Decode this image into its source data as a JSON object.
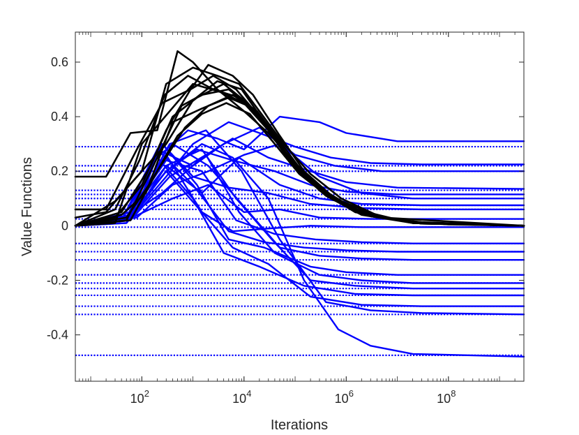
{
  "chart_data": {
    "type": "line",
    "xlabel": "Iterations",
    "ylabel": "Value Functions",
    "xscale": "log",
    "xlim": [
      5,
      3000000000
    ],
    "ylim": [
      -0.57,
      0.71
    ],
    "grid": false,
    "legend": "none",
    "colors": {
      "value_traces": "#0000ff",
      "convergent_traces": "#000000",
      "reference_levels": "#0000ff",
      "axes": "#262626"
    },
    "x_ticks": [
      {
        "value": 100,
        "base": "10",
        "exp": "2"
      },
      {
        "value": 10000,
        "base": "10",
        "exp": "4"
      },
      {
        "value": 1000000,
        "base": "10",
        "exp": "6"
      },
      {
        "value": 100000000,
        "base": "10",
        "exp": "8"
      }
    ],
    "y_ticks": [
      {
        "value": 0.6,
        "label": "0.6"
      },
      {
        "value": 0.4,
        "label": "0.4"
      },
      {
        "value": 0.2,
        "label": "0.2"
      },
      {
        "value": 0,
        "label": "0"
      },
      {
        "value": -0.2,
        "label": "-0.2"
      },
      {
        "value": -0.4,
        "label": "-0.4"
      }
    ],
    "reference_levels": [
      0.29,
      0.22,
      0.2,
      0.13,
      0.115,
      0.1,
      0.075,
      0.06,
      0.025,
      -0.005,
      -0.065,
      -0.095,
      -0.125,
      -0.18,
      -0.21,
      -0.23,
      -0.255,
      -0.295,
      -0.325,
      -0.475
    ],
    "blue_series": [
      {
        "x": [
          5,
          50,
          200,
          800,
          3000,
          10000,
          50000,
          300000,
          1000000,
          10000000,
          3000000000
        ],
        "y": [
          0,
          0.02,
          0.25,
          0.35,
          0.32,
          0.28,
          0.4,
          0.38,
          0.34,
          0.31,
          0.31
        ]
      },
      {
        "x": [
          5,
          50,
          300,
          1000,
          5000,
          20000,
          100000,
          500000,
          3000000,
          30000000,
          3000000000
        ],
        "y": [
          0,
          0.01,
          0.18,
          0.3,
          0.38,
          0.34,
          0.29,
          0.25,
          0.23,
          0.225,
          0.225
        ]
      },
      {
        "x": [
          5,
          60,
          200,
          1000,
          4000,
          20000,
          100000,
          600000,
          5000000,
          50000000,
          3000000000
        ],
        "y": [
          0,
          0.03,
          0.28,
          0.22,
          0.3,
          0.36,
          0.26,
          0.22,
          0.2,
          0.2,
          0.2
        ]
      },
      {
        "x": [
          5,
          40,
          250,
          1500,
          6000,
          30000,
          200000,
          1000000,
          10000000,
          3000000000
        ],
        "y": [
          0,
          0.02,
          0.12,
          0.25,
          0.32,
          0.25,
          0.2,
          0.16,
          0.14,
          0.135
        ]
      },
      {
        "x": [
          5,
          50,
          300,
          1200,
          6000,
          40000,
          200000,
          1000000,
          10000000,
          3000000000
        ],
        "y": [
          0,
          0.01,
          0.2,
          0.28,
          0.24,
          0.2,
          0.15,
          0.125,
          0.115,
          0.115
        ]
      },
      {
        "x": [
          5,
          80,
          400,
          2000,
          10000,
          50000,
          300000,
          2000000,
          20000000,
          3000000000
        ],
        "y": [
          0,
          0.03,
          0.15,
          0.2,
          0.26,
          0.3,
          0.18,
          0.12,
          0.1,
          0.1
        ]
      },
      {
        "x": [
          5,
          60,
          300,
          1500,
          8000,
          50000,
          300000,
          2000000,
          30000000,
          3000000000
        ],
        "y": [
          0,
          0.05,
          0.22,
          0.12,
          0.25,
          0.15,
          0.1,
          0.08,
          0.075,
          0.075
        ]
      },
      {
        "x": [
          5,
          70,
          250,
          1000,
          5000,
          30000,
          200000,
          2000000,
          30000000,
          3000000000
        ],
        "y": [
          0,
          0.04,
          0.3,
          0.18,
          0.14,
          0.12,
          0.08,
          0.065,
          0.06,
          0.06
        ]
      },
      {
        "x": [
          5,
          50,
          400,
          2000,
          10000,
          50000,
          300000,
          3000000,
          3000000000
        ],
        "y": [
          0,
          0.02,
          0.1,
          0.15,
          0.05,
          0.06,
          0.03,
          0.025,
          0.025
        ]
      },
      {
        "x": [
          5,
          60,
          300,
          1500,
          6000,
          30000,
          200000,
          2000000,
          3000000000
        ],
        "y": [
          0,
          0.04,
          0.2,
          0.05,
          -0.02,
          -0.01,
          0.0,
          -0.005,
          -0.005
        ]
      },
      {
        "x": [
          5,
          50,
          300,
          1500,
          7000,
          40000,
          250000,
          2000000,
          20000000,
          3000000000
        ],
        "y": [
          0,
          0.03,
          0.24,
          0.2,
          0.02,
          -0.03,
          -0.05,
          -0.06,
          -0.065,
          -0.065
        ]
      },
      {
        "x": [
          5,
          40,
          200,
          1000,
          5000,
          25000,
          150000,
          1000000,
          10000000,
          3000000000
        ],
        "y": [
          0,
          0.02,
          0.28,
          0.15,
          -0.02,
          -0.06,
          -0.08,
          -0.09,
          -0.095,
          -0.095
        ]
      },
      {
        "x": [
          5,
          60,
          400,
          2000,
          9000,
          50000,
          300000,
          2000000,
          20000000,
          3000000000
        ],
        "y": [
          0,
          0.05,
          0.3,
          0.22,
          0.08,
          -0.08,
          -0.11,
          -0.12,
          -0.125,
          -0.125
        ]
      },
      {
        "x": [
          5,
          50,
          250,
          1200,
          5000,
          25000,
          200000,
          1000000,
          10000000,
          3000000000
        ],
        "y": [
          0,
          0.03,
          0.3,
          0.15,
          -0.05,
          -0.08,
          -0.15,
          -0.17,
          -0.18,
          -0.18
        ]
      },
      {
        "x": [
          5,
          60,
          350,
          1800,
          8000,
          40000,
          300000,
          2000000,
          20000000,
          3000000000
        ],
        "y": [
          0,
          0.02,
          0.18,
          0.26,
          0.05,
          -0.1,
          -0.18,
          -0.2,
          -0.21,
          -0.21
        ]
      },
      {
        "x": [
          5,
          70,
          300,
          1500,
          7000,
          35000,
          200000,
          1500000,
          20000000,
          3000000000
        ],
        "y": [
          0,
          0.04,
          0.22,
          0.28,
          0.1,
          -0.05,
          -0.2,
          -0.22,
          -0.23,
          -0.23
        ]
      },
      {
        "x": [
          5,
          40,
          200,
          1000,
          4000,
          20000,
          150000,
          1500000,
          20000000,
          3000000000
        ],
        "y": [
          0,
          0.02,
          0.25,
          0.1,
          -0.1,
          -0.15,
          -0.22,
          -0.25,
          -0.255,
          -0.255
        ]
      },
      {
        "x": [
          5,
          50,
          300,
          1500,
          6000,
          30000,
          200000,
          2000000,
          30000000,
          3000000000
        ],
        "y": [
          0,
          0.03,
          0.26,
          0.05,
          -0.08,
          -0.14,
          -0.26,
          -0.29,
          -0.295,
          -0.295
        ]
      },
      {
        "x": [
          5,
          60,
          350,
          1800,
          9000,
          50000,
          400000,
          3000000,
          30000000,
          3000000000
        ],
        "y": [
          0,
          0.04,
          0.3,
          0.35,
          0.2,
          -0.05,
          -0.28,
          -0.31,
          -0.32,
          -0.325
        ]
      },
      {
        "x": [
          5,
          50,
          300,
          1500,
          6000,
          30000,
          150000,
          700000,
          3000000,
          20000000,
          3000000000
        ],
        "y": [
          0,
          0.02,
          0.2,
          0.3,
          0.25,
          0.1,
          -0.2,
          -0.38,
          -0.44,
          -0.47,
          -0.48
        ]
      }
    ],
    "black_series": [
      {
        "x": [
          5,
          20,
          60,
          200,
          500,
          1000,
          3000,
          10000,
          30000,
          100000,
          300000,
          1000000,
          10000000,
          100000000,
          3000000000
        ],
        "y": [
          0.18,
          0.18,
          0.34,
          0.35,
          0.64,
          0.6,
          0.5,
          0.42,
          0.34,
          0.23,
          0.13,
          0.07,
          0.02,
          0.005,
          0.0
        ]
      },
      {
        "x": [
          5,
          30,
          100,
          300,
          1000,
          3000,
          8000,
          20000,
          60000,
          200000,
          800000,
          5000000,
          50000000,
          3000000000
        ],
        "y": [
          0,
          0.09,
          0.2,
          0.52,
          0.58,
          0.55,
          0.52,
          0.42,
          0.3,
          0.19,
          0.1,
          0.03,
          0.008,
          0.0
        ]
      },
      {
        "x": [
          5,
          20,
          80,
          250,
          900,
          2000,
          6000,
          15000,
          50000,
          150000,
          600000,
          5000000,
          3000000000
        ],
        "y": [
          0.06,
          0.06,
          0.28,
          0.45,
          0.5,
          0.59,
          0.55,
          0.48,
          0.33,
          0.2,
          0.1,
          0.03,
          0.0
        ]
      },
      {
        "x": [
          5,
          40,
          150,
          400,
          1200,
          4000,
          10000,
          30000,
          100000,
          400000,
          2000000,
          20000000,
          3000000000
        ],
        "y": [
          0,
          0.05,
          0.22,
          0.4,
          0.47,
          0.52,
          0.46,
          0.36,
          0.22,
          0.12,
          0.05,
          0.01,
          0.0
        ]
      },
      {
        "x": [
          5,
          30,
          100,
          300,
          900,
          2500,
          7000,
          20000,
          70000,
          300000,
          1500000,
          15000000,
          3000000000
        ],
        "y": [
          0,
          0.03,
          0.15,
          0.35,
          0.5,
          0.55,
          0.5,
          0.4,
          0.26,
          0.14,
          0.06,
          0.015,
          0.0
        ]
      },
      {
        "x": [
          5,
          50,
          200,
          600,
          1500,
          5000,
          15000,
          40000,
          120000,
          500000,
          3000000,
          30000000,
          3000000000
        ],
        "y": [
          0,
          0.02,
          0.25,
          0.44,
          0.48,
          0.5,
          0.43,
          0.32,
          0.2,
          0.1,
          0.035,
          0.008,
          0.0
        ]
      },
      {
        "x": [
          5,
          20,
          80,
          300,
          1000,
          3000,
          9000,
          25000,
          80000,
          300000,
          1500000,
          20000000,
          3000000000
        ],
        "y": [
          0.03,
          0.05,
          0.18,
          0.3,
          0.46,
          0.53,
          0.5,
          0.38,
          0.24,
          0.13,
          0.05,
          0.01,
          0.0
        ]
      },
      {
        "x": [
          5,
          40,
          120,
          400,
          1500,
          5000,
          12000,
          35000,
          100000,
          400000,
          2000000,
          20000000,
          3000000000
        ],
        "y": [
          0,
          0.04,
          0.12,
          0.38,
          0.43,
          0.47,
          0.44,
          0.34,
          0.21,
          0.11,
          0.04,
          0.01,
          0.0
        ]
      },
      {
        "x": [
          5,
          30,
          100,
          350,
          1000,
          3500,
          10000,
          30000,
          90000,
          350000,
          2000000,
          20000000,
          3000000000
        ],
        "y": [
          0,
          0.01,
          0.3,
          0.42,
          0.52,
          0.49,
          0.45,
          0.35,
          0.22,
          0.12,
          0.045,
          0.01,
          0.0
        ]
      },
      {
        "x": [
          5,
          60,
          200,
          700,
          2000,
          6000,
          18000,
          50000,
          150000,
          600000,
          3000000,
          30000000,
          3000000000
        ],
        "y": [
          0,
          0.02,
          0.2,
          0.36,
          0.44,
          0.48,
          0.42,
          0.31,
          0.19,
          0.1,
          0.035,
          0.008,
          0.0
        ]
      },
      {
        "x": [
          5,
          30,
          90,
          280,
          800,
          2500,
          8000,
          25000,
          80000,
          300000,
          1500000,
          20000000,
          3000000000
        ],
        "y": [
          0,
          0.06,
          0.24,
          0.48,
          0.55,
          0.5,
          0.47,
          0.37,
          0.24,
          0.13,
          0.05,
          0.01,
          0.0
        ]
      },
      {
        "x": [
          5,
          50,
          150,
          500,
          1500,
          4500,
          13000,
          40000,
          120000,
          500000,
          3000000,
          30000000,
          3000000000
        ],
        "y": [
          0,
          0.03,
          0.16,
          0.33,
          0.41,
          0.45,
          0.41,
          0.3,
          0.19,
          0.1,
          0.035,
          0.008,
          0.0
        ]
      }
    ]
  }
}
